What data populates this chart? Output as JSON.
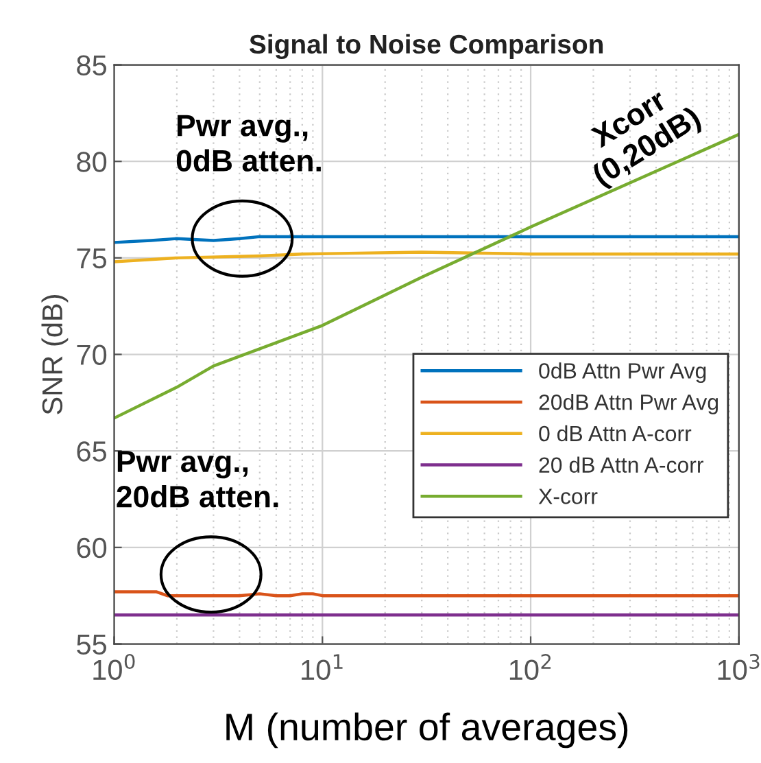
{
  "chart_data": {
    "type": "line",
    "title": "Signal to Noise Comparison",
    "xlabel": "M (number of averages)",
    "ylabel": "SNR (dB)",
    "log": "x",
    "grid": true,
    "legend": "right",
    "marker": "none",
    "line_style": "solid",
    "xlim": [
      1,
      1000
    ],
    "xticks": [
      {
        "value": 1,
        "label": "10$^{0}$"
      },
      {
        "value": 10,
        "label": "10$^{1}$"
      },
      {
        "value": 100,
        "label": "10$^{2}$"
      },
      {
        "value": 1000,
        "label": "10$^{3}$"
      }
    ],
    "ylim": [
      55,
      85
    ],
    "yticks": [
      55,
      60,
      65,
      70,
      75,
      80,
      85
    ],
    "series": [
      {
        "name": "0dB Attn Pwr Avg",
        "color": "#0072bd",
        "x": [
          1,
          1.5,
          2,
          3,
          4,
          5,
          10,
          100,
          1000
        ],
        "values": [
          75.8,
          75.9,
          76.0,
          75.9,
          76.0,
          76.1,
          76.1,
          76.1,
          76.1
        ]
      },
      {
        "name": "20dB Attn Pwr Avg",
        "color": "#d95319",
        "x": [
          1,
          1.6,
          1.8,
          4,
          5,
          6,
          7,
          8,
          9,
          10,
          100,
          1000
        ],
        "values": [
          57.7,
          57.7,
          57.5,
          57.5,
          57.6,
          57.5,
          57.5,
          57.6,
          57.6,
          57.5,
          57.5,
          57.5
        ]
      },
      {
        "name": "0 dB Attn A-corr",
        "color": "#edb120",
        "x": [
          1,
          2,
          5,
          8,
          30,
          100,
          1000
        ],
        "values": [
          74.8,
          75.0,
          75.1,
          75.2,
          75.3,
          75.2,
          75.2
        ]
      },
      {
        "name": "20 dB Attn A-corr",
        "color": "#7e2f8e",
        "x": [
          1,
          1000
        ],
        "values": [
          56.5,
          56.5
        ]
      },
      {
        "name": "X-corr",
        "color": "#77ac30",
        "x": [
          1,
          2,
          3,
          10,
          30,
          100,
          1000
        ],
        "values": [
          66.7,
          68.3,
          69.4,
          71.5,
          74.0,
          76.6,
          81.4
        ]
      }
    ],
    "annotations": [
      "Pwr avg.,\n0dB atten.",
      "Pwr avg.,\n20dB atten.",
      "Xcorr\n(0,20dB)"
    ]
  }
}
